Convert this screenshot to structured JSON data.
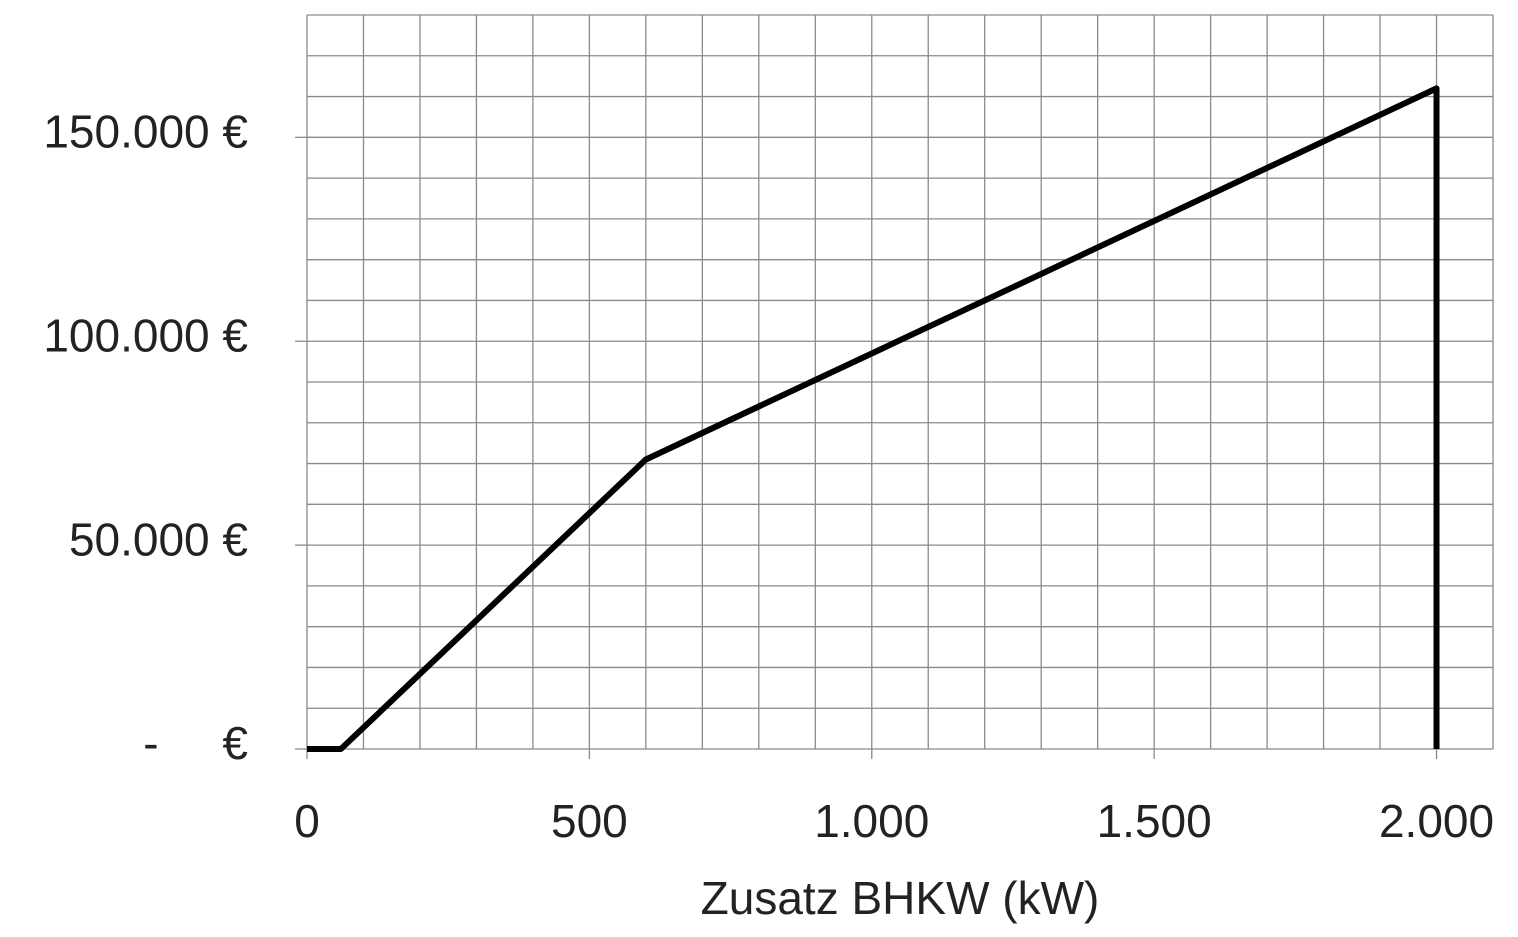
{
  "chart_data": {
    "type": "line",
    "x_label": "Zusatz BHKW (kW)",
    "x": [
      0,
      60,
      600,
      2000,
      2000
    ],
    "series": [
      {
        "name": null,
        "color": "#000000",
        "values": [
          0,
          0,
          71000,
          162000,
          0
        ]
      }
    ],
    "xlim": [
      0,
      2100
    ],
    "ylim": [
      0,
      180000
    ],
    "xticks": [
      0,
      500,
      {
        "value": 1000,
        "label": "1.000"
      },
      {
        "value": 1500,
        "label": "1.500"
      },
      {
        "value": 2000,
        "label": "2.000"
      }
    ],
    "yticks": [
      {
        "value": 0,
        "label": "-     €"
      },
      {
        "value": 50000,
        "label": "50.000 €"
      },
      {
        "value": 100000,
        "label": "100.000 €"
      },
      {
        "value": 150000,
        "label": "150.000 €"
      }
    ],
    "x_gridlines": [
      0,
      100,
      200,
      300,
      400,
      500,
      600,
      700,
      800,
      900,
      1000,
      1100,
      1200,
      1300,
      1400,
      1500,
      1600,
      1700,
      1800,
      1900,
      2000,
      2100
    ],
    "y_gridlines": [
      0,
      10000,
      20000,
      30000,
      40000,
      50000,
      60000,
      70000,
      80000,
      90000,
      100000,
      110000,
      120000,
      130000,
      140000,
      150000,
      160000,
      170000,
      180000
    ],
    "grid": true
  }
}
